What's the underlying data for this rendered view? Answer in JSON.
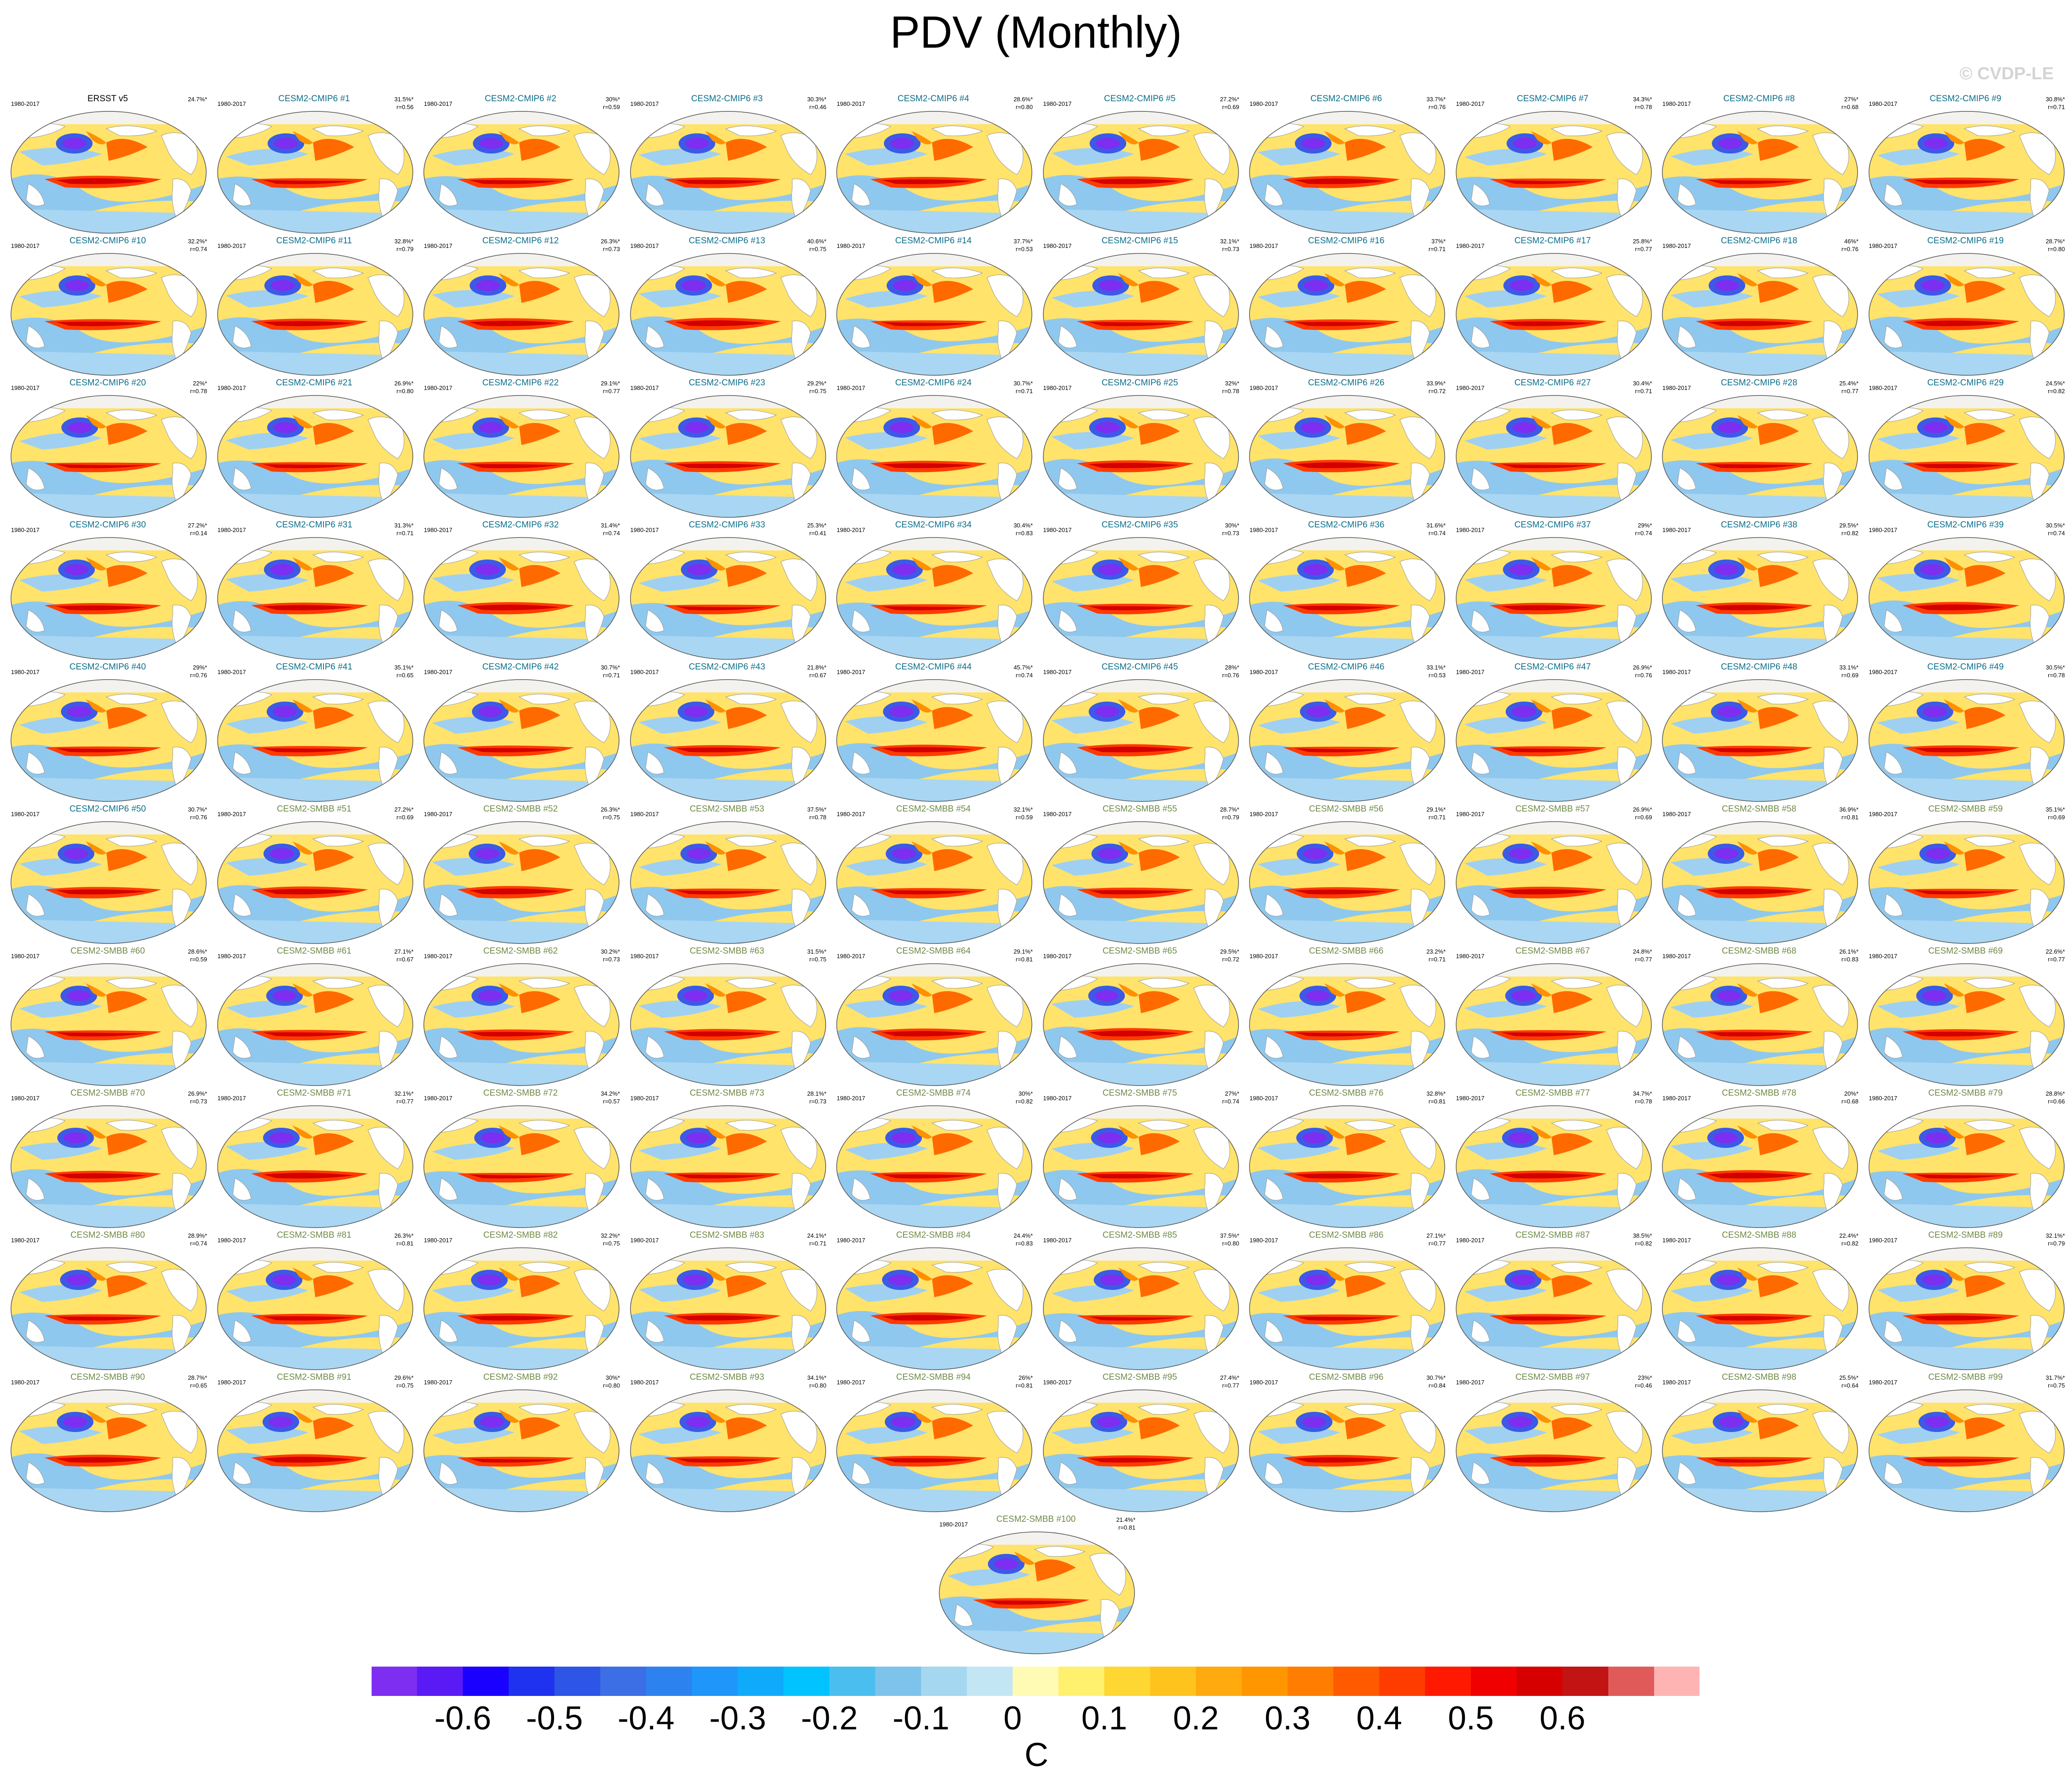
{
  "title": "PDV (Monthly)",
  "copyright": "© CVDP-LE",
  "panel_period": "1980-2017",
  "title_colors": {
    "observed": "#000000",
    "cmip6": "#0a6e8a",
    "smbb": "#6e8a46"
  },
  "panels": [
    {
      "title": "ERSST v5",
      "pct": "24.7%*",
      "r": "",
      "group": "observed"
    },
    {
      "title": "CESM2-CMIP6 #1",
      "pct": "31.5%*",
      "r": "r=0.56",
      "group": "cmip6"
    },
    {
      "title": "CESM2-CMIP6 #2",
      "pct": "30%*",
      "r": "r=0.59",
      "group": "cmip6"
    },
    {
      "title": "CESM2-CMIP6 #3",
      "pct": "30.3%*",
      "r": "r=0.46",
      "group": "cmip6"
    },
    {
      "title": "CESM2-CMIP6 #4",
      "pct": "28.6%*",
      "r": "r=0.80",
      "group": "cmip6"
    },
    {
      "title": "CESM2-CMIP6 #5",
      "pct": "27.2%*",
      "r": "r=0.69",
      "group": "cmip6"
    },
    {
      "title": "CESM2-CMIP6 #6",
      "pct": "33.7%*",
      "r": "r=0.76",
      "group": "cmip6"
    },
    {
      "title": "CESM2-CMIP6 #7",
      "pct": "34.3%*",
      "r": "r=0.78",
      "group": "cmip6"
    },
    {
      "title": "CESM2-CMIP6 #8",
      "pct": "27%*",
      "r": "r=0.68",
      "group": "cmip6"
    },
    {
      "title": "CESM2-CMIP6 #9",
      "pct": "30.8%*",
      "r": "r=0.71",
      "group": "cmip6"
    },
    {
      "title": "CESM2-CMIP6 #10",
      "pct": "32.2%*",
      "r": "r=0.74",
      "group": "cmip6"
    },
    {
      "title": "CESM2-CMIP6 #11",
      "pct": "32.8%*",
      "r": "r=0.79",
      "group": "cmip6"
    },
    {
      "title": "CESM2-CMIP6 #12",
      "pct": "26.3%*",
      "r": "r=0.73",
      "group": "cmip6"
    },
    {
      "title": "CESM2-CMIP6 #13",
      "pct": "40.6%*",
      "r": "r=0.75",
      "group": "cmip6"
    },
    {
      "title": "CESM2-CMIP6 #14",
      "pct": "37.7%*",
      "r": "r=0.53",
      "group": "cmip6"
    },
    {
      "title": "CESM2-CMIP6 #15",
      "pct": "32.1%*",
      "r": "r=0.73",
      "group": "cmip6"
    },
    {
      "title": "CESM2-CMIP6 #16",
      "pct": "37%*",
      "r": "r=0.71",
      "group": "cmip6"
    },
    {
      "title": "CESM2-CMIP6 #17",
      "pct": "25.8%*",
      "r": "r=0.77",
      "group": "cmip6"
    },
    {
      "title": "CESM2-CMIP6 #18",
      "pct": "46%*",
      "r": "r=0.76",
      "group": "cmip6"
    },
    {
      "title": "CESM2-CMIP6 #19",
      "pct": "28.7%*",
      "r": "r=0.80",
      "group": "cmip6"
    },
    {
      "title": "CESM2-CMIP6 #20",
      "pct": "22%*",
      "r": "r=0.78",
      "group": "cmip6"
    },
    {
      "title": "CESM2-CMIP6 #21",
      "pct": "26.9%*",
      "r": "r=0.80",
      "group": "cmip6"
    },
    {
      "title": "CESM2-CMIP6 #22",
      "pct": "29.1%*",
      "r": "r=0.77",
      "group": "cmip6"
    },
    {
      "title": "CESM2-CMIP6 #23",
      "pct": "29.2%*",
      "r": "r=0.75",
      "group": "cmip6"
    },
    {
      "title": "CESM2-CMIP6 #24",
      "pct": "30.7%*",
      "r": "r=0.71",
      "group": "cmip6"
    },
    {
      "title": "CESM2-CMIP6 #25",
      "pct": "32%*",
      "r": "r=0.78",
      "group": "cmip6"
    },
    {
      "title": "CESM2-CMIP6 #26",
      "pct": "33.9%*",
      "r": "r=0.72",
      "group": "cmip6"
    },
    {
      "title": "CESM2-CMIP6 #27",
      "pct": "30.4%*",
      "r": "r=0.71",
      "group": "cmip6"
    },
    {
      "title": "CESM2-CMIP6 #28",
      "pct": "25.4%*",
      "r": "r=0.77",
      "group": "cmip6"
    },
    {
      "title": "CESM2-CMIP6 #29",
      "pct": "24.5%*",
      "r": "r=0.82",
      "group": "cmip6"
    },
    {
      "title": "CESM2-CMIP6 #30",
      "pct": "27.2%*",
      "r": "r=0.14",
      "group": "cmip6"
    },
    {
      "title": "CESM2-CMIP6 #31",
      "pct": "31.3%*",
      "r": "r=0.71",
      "group": "cmip6"
    },
    {
      "title": "CESM2-CMIP6 #32",
      "pct": "31.4%*",
      "r": "r=0.74",
      "group": "cmip6"
    },
    {
      "title": "CESM2-CMIP6 #33",
      "pct": "25.3%*",
      "r": "r=0.41",
      "group": "cmip6"
    },
    {
      "title": "CESM2-CMIP6 #34",
      "pct": "30.4%*",
      "r": "r=0.83",
      "group": "cmip6"
    },
    {
      "title": "CESM2-CMIP6 #35",
      "pct": "30%*",
      "r": "r=0.73",
      "group": "cmip6"
    },
    {
      "title": "CESM2-CMIP6 #36",
      "pct": "31.6%*",
      "r": "r=0.74",
      "group": "cmip6"
    },
    {
      "title": "CESM2-CMIP6 #37",
      "pct": "29%*",
      "r": "r=0.74",
      "group": "cmip6"
    },
    {
      "title": "CESM2-CMIP6 #38",
      "pct": "29.5%*",
      "r": "r=0.82",
      "group": "cmip6"
    },
    {
      "title": "CESM2-CMIP6 #39",
      "pct": "30.5%*",
      "r": "r=0.74",
      "group": "cmip6"
    },
    {
      "title": "CESM2-CMIP6 #40",
      "pct": "29%*",
      "r": "r=0.76",
      "group": "cmip6"
    },
    {
      "title": "CESM2-CMIP6 #41",
      "pct": "35.1%*",
      "r": "r=0.65",
      "group": "cmip6"
    },
    {
      "title": "CESM2-CMIP6 #42",
      "pct": "30.7%*",
      "r": "r=0.71",
      "group": "cmip6"
    },
    {
      "title": "CESM2-CMIP6 #43",
      "pct": "21.8%*",
      "r": "r=0.67",
      "group": "cmip6"
    },
    {
      "title": "CESM2-CMIP6 #44",
      "pct": "45.7%*",
      "r": "r=0.74",
      "group": "cmip6"
    },
    {
      "title": "CESM2-CMIP6 #45",
      "pct": "28%*",
      "r": "r=0.76",
      "group": "cmip6"
    },
    {
      "title": "CESM2-CMIP6 #46",
      "pct": "33.1%*",
      "r": "r=0.53",
      "group": "cmip6"
    },
    {
      "title": "CESM2-CMIP6 #47",
      "pct": "26.9%*",
      "r": "r=0.76",
      "group": "cmip6"
    },
    {
      "title": "CESM2-CMIP6 #48",
      "pct": "33.1%*",
      "r": "r=0.69",
      "group": "cmip6"
    },
    {
      "title": "CESM2-CMIP6 #49",
      "pct": "30.5%*",
      "r": "r=0.78",
      "group": "cmip6"
    },
    {
      "title": "CESM2-CMIP6 #50",
      "pct": "30.7%*",
      "r": "r=0.76",
      "group": "cmip6"
    },
    {
      "title": "CESM2-SMBB #51",
      "pct": "27.2%*",
      "r": "r=0.69",
      "group": "smbb"
    },
    {
      "title": "CESM2-SMBB #52",
      "pct": "26.3%*",
      "r": "r=0.75",
      "group": "smbb"
    },
    {
      "title": "CESM2-SMBB #53",
      "pct": "37.5%*",
      "r": "r=0.78",
      "group": "smbb"
    },
    {
      "title": "CESM2-SMBB #54",
      "pct": "32.1%*",
      "r": "r=0.59",
      "group": "smbb"
    },
    {
      "title": "CESM2-SMBB #55",
      "pct": "28.7%*",
      "r": "r=0.79",
      "group": "smbb"
    },
    {
      "title": "CESM2-SMBB #56",
      "pct": "29.1%*",
      "r": "r=0.71",
      "group": "smbb"
    },
    {
      "title": "CESM2-SMBB #57",
      "pct": "26.9%*",
      "r": "r=0.69",
      "group": "smbb"
    },
    {
      "title": "CESM2-SMBB #58",
      "pct": "36.9%*",
      "r": "r=0.81",
      "group": "smbb"
    },
    {
      "title": "CESM2-SMBB #59",
      "pct": "35.1%*",
      "r": "r=0.69",
      "group": "smbb"
    },
    {
      "title": "CESM2-SMBB #60",
      "pct": "28.6%*",
      "r": "r=0.59",
      "group": "smbb"
    },
    {
      "title": "CESM2-SMBB #61",
      "pct": "27.1%*",
      "r": "r=0.67",
      "group": "smbb"
    },
    {
      "title": "CESM2-SMBB #62",
      "pct": "30.2%*",
      "r": "r=0.73",
      "group": "smbb"
    },
    {
      "title": "CESM2-SMBB #63",
      "pct": "31.5%*",
      "r": "r=0.75",
      "group": "smbb"
    },
    {
      "title": "CESM2-SMBB #64",
      "pct": "29.1%*",
      "r": "r=0.81",
      "group": "smbb"
    },
    {
      "title": "CESM2-SMBB #65",
      "pct": "29.5%*",
      "r": "r=0.72",
      "group": "smbb"
    },
    {
      "title": "CESM2-SMBB #66",
      "pct": "23.2%*",
      "r": "r=0.71",
      "group": "smbb"
    },
    {
      "title": "CESM2-SMBB #67",
      "pct": "24.8%*",
      "r": "r=0.77",
      "group": "smbb"
    },
    {
      "title": "CESM2-SMBB #68",
      "pct": "26.1%*",
      "r": "r=0.83",
      "group": "smbb"
    },
    {
      "title": "CESM2-SMBB #69",
      "pct": "22.6%*",
      "r": "r=0.77",
      "group": "smbb"
    },
    {
      "title": "CESM2-SMBB #70",
      "pct": "26.9%*",
      "r": "r=0.73",
      "group": "smbb"
    },
    {
      "title": "CESM2-SMBB #71",
      "pct": "32.1%*",
      "r": "r=0.77",
      "group": "smbb"
    },
    {
      "title": "CESM2-SMBB #72",
      "pct": "34.2%*",
      "r": "r=0.57",
      "group": "smbb"
    },
    {
      "title": "CESM2-SMBB #73",
      "pct": "28.1%*",
      "r": "r=0.73",
      "group": "smbb"
    },
    {
      "title": "CESM2-SMBB #74",
      "pct": "30%*",
      "r": "r=0.82",
      "group": "smbb"
    },
    {
      "title": "CESM2-SMBB #75",
      "pct": "27%*",
      "r": "r=0.74",
      "group": "smbb"
    },
    {
      "title": "CESM2-SMBB #76",
      "pct": "32.8%*",
      "r": "r=0.81",
      "group": "smbb"
    },
    {
      "title": "CESM2-SMBB #77",
      "pct": "34.7%*",
      "r": "r=0.78",
      "group": "smbb"
    },
    {
      "title": "CESM2-SMBB #78",
      "pct": "20%*",
      "r": "r=0.68",
      "group": "smbb"
    },
    {
      "title": "CESM2-SMBB #79",
      "pct": "28.8%*",
      "r": "r=0.66",
      "group": "smbb"
    },
    {
      "title": "CESM2-SMBB #80",
      "pct": "28.9%*",
      "r": "r=0.74",
      "group": "smbb"
    },
    {
      "title": "CESM2-SMBB #81",
      "pct": "26.3%*",
      "r": "r=0.81",
      "group": "smbb"
    },
    {
      "title": "CESM2-SMBB #82",
      "pct": "32.2%*",
      "r": "r=0.75",
      "group": "smbb"
    },
    {
      "title": "CESM2-SMBB #83",
      "pct": "24.1%*",
      "r": "r=0.71",
      "group": "smbb"
    },
    {
      "title": "CESM2-SMBB #84",
      "pct": "24.4%*",
      "r": "r=0.83",
      "group": "smbb"
    },
    {
      "title": "CESM2-SMBB #85",
      "pct": "37.5%*",
      "r": "r=0.80",
      "group": "smbb"
    },
    {
      "title": "CESM2-SMBB #86",
      "pct": "27.1%*",
      "r": "r=0.77",
      "group": "smbb"
    },
    {
      "title": "CESM2-SMBB #87",
      "pct": "38.5%*",
      "r": "r=0.82",
      "group": "smbb"
    },
    {
      "title": "CESM2-SMBB #88",
      "pct": "22.4%*",
      "r": "r=0.82",
      "group": "smbb"
    },
    {
      "title": "CESM2-SMBB #89",
      "pct": "32.1%*",
      "r": "r=0.79",
      "group": "smbb"
    },
    {
      "title": "CESM2-SMBB #90",
      "pct": "28.7%*",
      "r": "r=0.65",
      "group": "smbb"
    },
    {
      "title": "CESM2-SMBB #91",
      "pct": "29.6%*",
      "r": "r=0.75",
      "group": "smbb"
    },
    {
      "title": "CESM2-SMBB #92",
      "pct": "30%*",
      "r": "r=0.80",
      "group": "smbb"
    },
    {
      "title": "CESM2-SMBB #93",
      "pct": "34.1%*",
      "r": "r=0.80",
      "group": "smbb"
    },
    {
      "title": "CESM2-SMBB #94",
      "pct": "26%*",
      "r": "r=0.81",
      "group": "smbb"
    },
    {
      "title": "CESM2-SMBB #95",
      "pct": "27.4%*",
      "r": "r=0.77",
      "group": "smbb"
    },
    {
      "title": "CESM2-SMBB #96",
      "pct": "30.7%*",
      "r": "r=0.84",
      "group": "smbb"
    },
    {
      "title": "CESM2-SMBB #97",
      "pct": "23%*",
      "r": "r=0.46",
      "group": "smbb"
    },
    {
      "title": "CESM2-SMBB #98",
      "pct": "25.5%*",
      "r": "r=0.64",
      "group": "smbb"
    },
    {
      "title": "CESM2-SMBB #99",
      "pct": "31.7%*",
      "r": "r=0.75",
      "group": "smbb"
    },
    {
      "title": "CESM2-SMBB #100",
      "pct": "21.4%*",
      "r": "r=0.81",
      "group": "smbb"
    }
  ],
  "colorbar": {
    "units": "C",
    "colors": [
      "#7d2ef0",
      "#5a1af5",
      "#1a00ff",
      "#1e32f0",
      "#2d55e6",
      "#3c6ee6",
      "#2d82f0",
      "#1e96fa",
      "#0fabfa",
      "#00c3ff",
      "#4bbef0",
      "#7dc3eb",
      "#a5d7f0",
      "#c3e6f5",
      "#fffab4",
      "#fff06e",
      "#ffd732",
      "#ffc31e",
      "#ffaa0f",
      "#ff9600",
      "#ff7d00",
      "#ff5a00",
      "#ff3c00",
      "#ff1900",
      "#f00000",
      "#d70000",
      "#c31414",
      "#e15a5a",
      "#ffb4b4"
    ],
    "tick_labels": [
      "-0.6",
      "-0.5",
      "-0.4",
      "-0.3",
      "-0.2",
      "-0.1",
      "0",
      "0.1",
      "0.2",
      "0.3",
      "0.4",
      "0.5",
      "0.6"
    ]
  }
}
